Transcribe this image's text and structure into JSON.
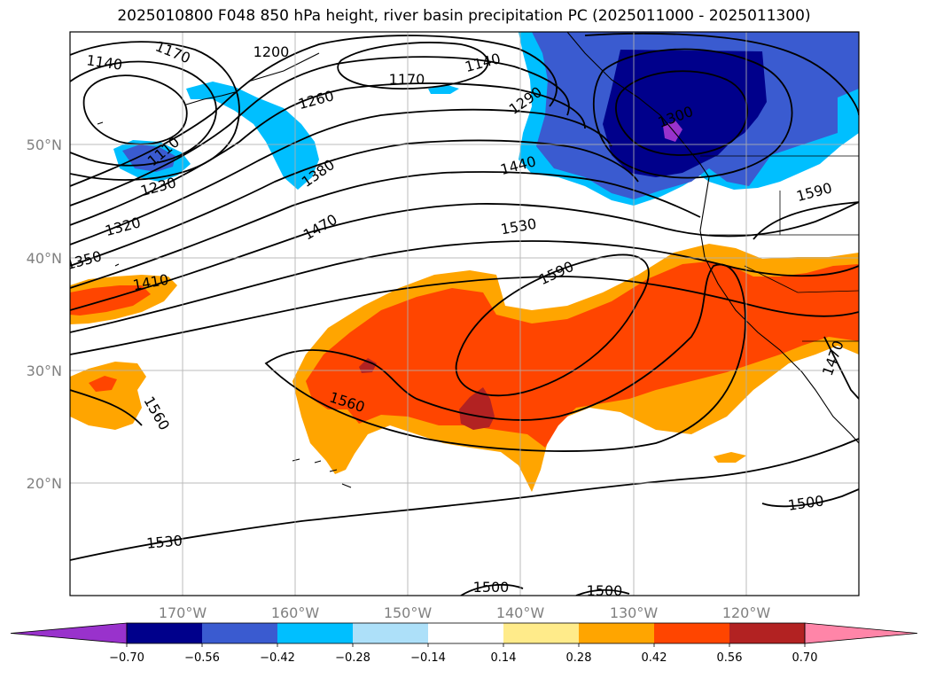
{
  "title": "2025010800 F048 850 hPa height, river basin precipitation PC (2025011000 - 2025011300)",
  "lon_ticks": [
    "170°W",
    "160°W",
    "150°W",
    "140°W",
    "130°W",
    "120°W"
  ],
  "lat_ticks": [
    "50°N",
    "40°N",
    "30°N",
    "20°N"
  ],
  "contour_labels": [
    "1140",
    "1170",
    "1200",
    "1170",
    "1140",
    "1290",
    "1260",
    "1300",
    "1110",
    "1380",
    "1440",
    "1230",
    "1590",
    "1320",
    "1470",
    "1530",
    "1350",
    "1410",
    "1590",
    "1470",
    "1560",
    "1560",
    "1500",
    "1530",
    "1500",
    "1500"
  ],
  "colorbar": {
    "ticks": [
      "−0.70",
      "−0.56",
      "−0.42",
      "−0.28",
      "−0.14",
      "0.14",
      "0.28",
      "0.42",
      "0.56",
      "0.70"
    ],
    "colors": [
      "#9932CC",
      "#00008B",
      "#3A5BD0",
      "#00BFFF",
      "#ADE0F9",
      "#FFFFFF",
      "#FFEB8A",
      "#FFA500",
      "#FF4500",
      "#B22222",
      "#FF85A8"
    ]
  }
}
